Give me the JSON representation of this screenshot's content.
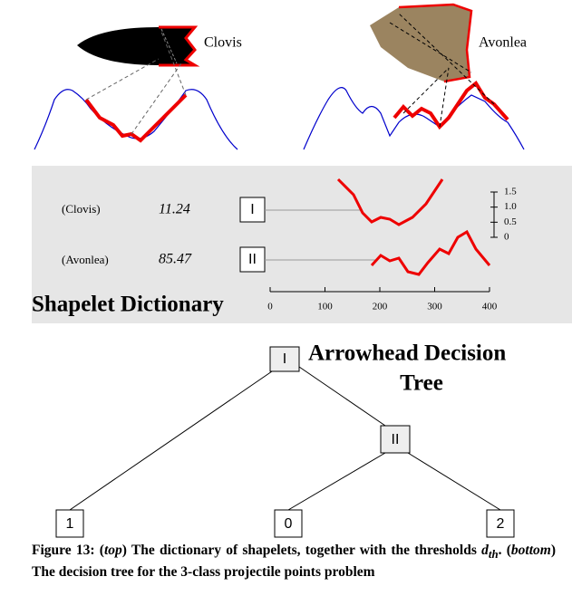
{
  "top": {
    "labels": [
      "Clovis",
      "Avonlea"
    ]
  },
  "dictionary": {
    "title": "Shapelet Dictionary",
    "rows": [
      {
        "class": "(Clovis)",
        "threshold": 11.24,
        "node": "I"
      },
      {
        "class": "(Avonlea)",
        "threshold": 85.47,
        "node": "II"
      }
    ],
    "xticks": [
      0,
      100,
      200,
      300,
      400
    ],
    "scale_ticks": [
      0,
      0.5,
      {
        "value": 1,
        "label": "1.0"
      },
      1.5
    ]
  },
  "tree": {
    "title": [
      "Arrowhead Decision",
      "Tree"
    ],
    "nodes": [
      "I",
      "II",
      "1",
      "0",
      "2"
    ]
  },
  "caption": {
    "segments": [
      "Figure 13: (",
      "top",
      ") The dictionary of shapelets, together with the thresholds ",
      "d",
      "th",
      ". (",
      "bottom",
      ") The decision tree for the 3-class projectile points problem"
    ]
  }
}
